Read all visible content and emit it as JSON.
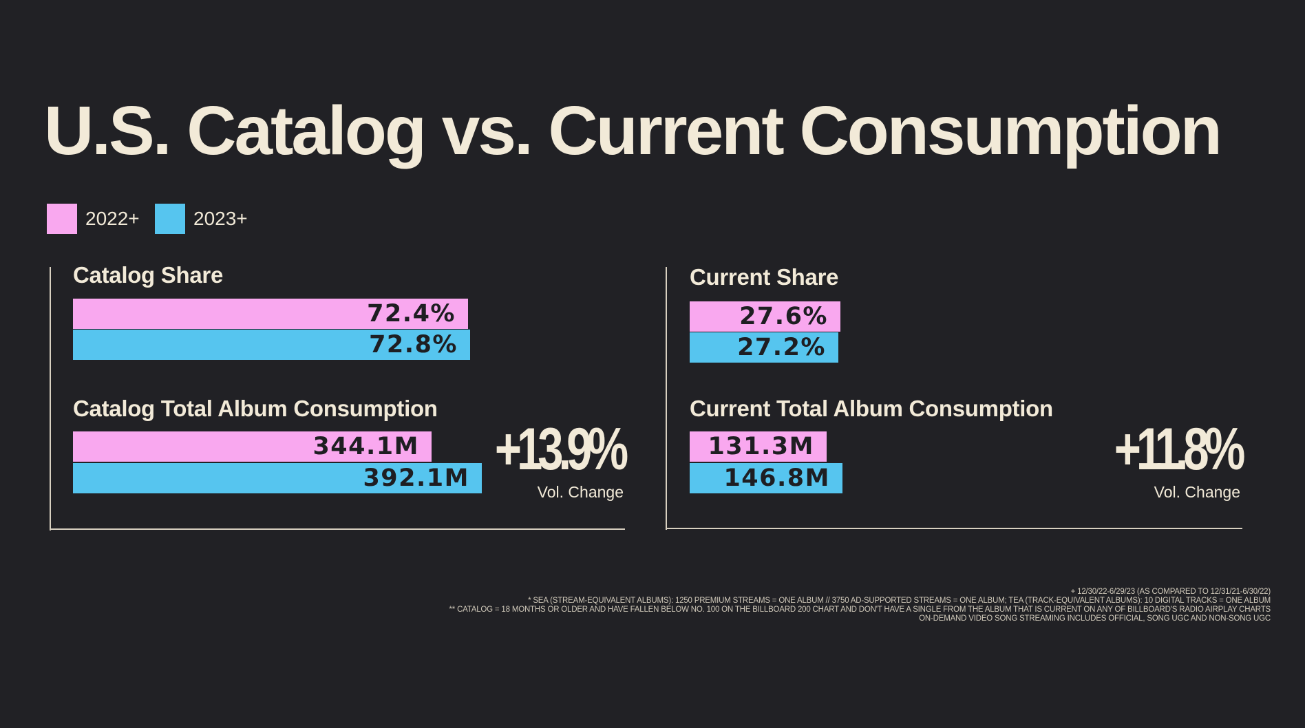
{
  "title": "U.S. Catalog vs. Current Consumption",
  "colors": {
    "background": "#212125",
    "series_2022": "#f9a8ef",
    "series_2023": "#56c5ef",
    "text": "#f2ead8"
  },
  "legend": [
    {
      "label": "2022+",
      "color": "#f9a8ef"
    },
    {
      "label": "2023+",
      "color": "#56c5ef"
    }
  ],
  "chart_data": [
    {
      "type": "bar",
      "title": "Catalog Share",
      "series": [
        {
          "name": "2022+",
          "values": [
            72.4
          ],
          "label": "72.4%"
        },
        {
          "name": "2023+",
          "values": [
            72.8
          ],
          "label": "72.8%"
        }
      ]
    },
    {
      "type": "bar",
      "title": "Catalog Total Album Consumption",
      "series": [
        {
          "name": "2022+",
          "values": [
            344.1
          ],
          "label": "344.1M"
        },
        {
          "name": "2023+",
          "values": [
            392.1
          ],
          "label": "392.1M"
        }
      ],
      "change": "+13.9%",
      "change_label": "Vol. Change"
    },
    {
      "type": "bar",
      "title": "Current Share",
      "series": [
        {
          "name": "2022+",
          "values": [
            27.6
          ],
          "label": "27.6%"
        },
        {
          "name": "2023+",
          "values": [
            27.2
          ],
          "label": "27.2%"
        }
      ]
    },
    {
      "type": "bar",
      "title": "Current Total Album Consumption",
      "series": [
        {
          "name": "2022+",
          "values": [
            131.3
          ],
          "label": "131.3M"
        },
        {
          "name": "2023+",
          "values": [
            146.8
          ],
          "label": "146.8M"
        }
      ],
      "change": "+11.8%",
      "change_label": "Vol. Change"
    }
  ],
  "footnotes": [
    "+ 12/30/22-6/29/23 (AS COMPARED TO 12/31/21-6/30/22)",
    "* SEA (STREAM-EQUIVALENT ALBUMS): 1250 PREMIUM STREAMS = ONE ALBUM // 3750 AD-SUPPORTED STREAMS = ONE ALBUM; TEA (TRACK-EQUIVALENT ALBUMS): 10 DIGITAL TRACKS = ONE ALBUM",
    "** CATALOG = 18 MONTHS OR OLDER AND HAVE FALLEN BELOW NO. 100 ON THE BILLBOARD 200 CHART AND DON'T HAVE A SINGLE FROM THE ALBUM THAT IS CURRENT ON ANY OF BILLBOARD'S RADIO AIRPLAY CHARTS",
    "ON-DEMAND VIDEO SONG STREAMING INCLUDES OFFICIAL, SONG UGC AND NON-SONG UGC"
  ]
}
